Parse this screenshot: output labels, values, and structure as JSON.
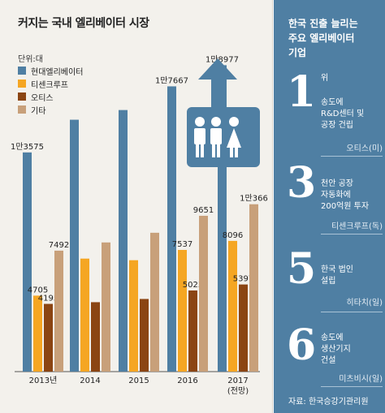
{
  "chart_data": {
    "type": "bar",
    "title": "커지는 국내 엘리베이터 시장",
    "unit": "단위:대",
    "categories": [
      "2013년",
      "2014",
      "2015",
      "2016",
      "2017"
    ],
    "category_sublabels": [
      "",
      "",
      "",
      "",
      "(전망)"
    ],
    "series": [
      {
        "name": "현대엘리베이터",
        "color": "#4f7fa3",
        "values": [
          13575,
          15600,
          16200,
          17667,
          18977
        ],
        "labels": [
          "1만3575",
          "",
          "",
          "1만7667",
          "1만8977"
        ]
      },
      {
        "name": "티센크루프",
        "color": "#f5a623",
        "values": [
          4705,
          7000,
          6900,
          7537,
          8096
        ],
        "labels": [
          "4705",
          "",
          "",
          "7537",
          "8096"
        ]
      },
      {
        "name": "오티스",
        "color": "#8b4513",
        "values": [
          4195,
          4300,
          4500,
          5025,
          5397
        ],
        "labels": [
          "4195",
          "",
          "",
          "5025",
          "5397"
        ]
      },
      {
        "name": "기타",
        "color": "#c8a07a",
        "values": [
          7492,
          8000,
          8600,
          9651,
          10366
        ],
        "labels": [
          "7492",
          "",
          "",
          "9651",
          "1만366"
        ]
      }
    ],
    "ylim": [
      0,
      20000
    ]
  },
  "panel": {
    "title_lines": [
      "한국 진출 늘리는",
      "주요 엘리베이터",
      "기업"
    ],
    "items": [
      {
        "number": "1",
        "suffix": "위",
        "lines": [
          "송도에",
          "R&D센터 및",
          "공장 건립"
        ],
        "company": "오티스(미)"
      },
      {
        "number": "3",
        "suffix": "",
        "lines": [
          "천안 공장",
          "자동화에",
          "200억원 투자"
        ],
        "company": "티센크루프(독)"
      },
      {
        "number": "5",
        "suffix": "",
        "lines": [
          "한국 법인",
          "설립"
        ],
        "company": "히타치(일)"
      },
      {
        "number": "6",
        "suffix": "",
        "lines": [
          "송도에",
          "생산기지",
          "건설"
        ],
        "company": "미츠비시(일)"
      }
    ],
    "source": "자료: 한국승강기관리원"
  },
  "colors": {
    "panel": "#4f7fa3",
    "background": "#f3f1ec"
  },
  "icons": [
    "elevator-up-arrow-icon",
    "people-icon"
  ]
}
